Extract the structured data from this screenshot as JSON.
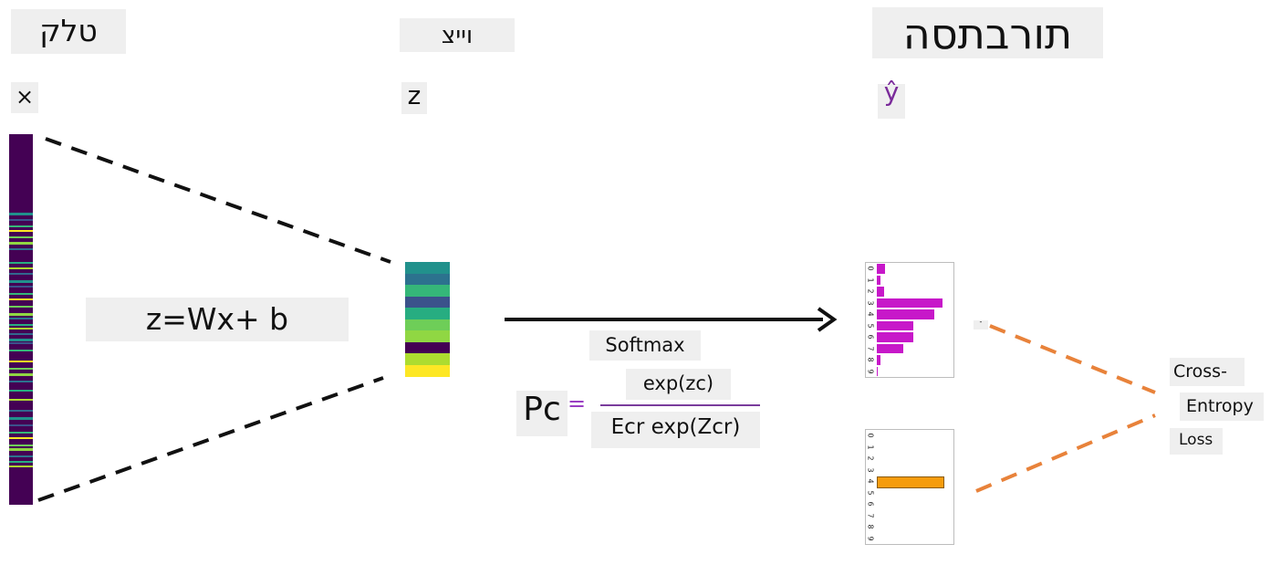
{
  "labels": {
    "input_title": "טלק",
    "logits_title": "וייצ",
    "output_title": "תורבתסה",
    "input_symbol": "×",
    "logits_symbol": "z",
    "output_symbol": "ŷ",
    "linear_eq": "z=Wx+ b",
    "softmax": "Softmax",
    "numerator": "exp(zc)",
    "denominator": "Ecr exp(Zcr)",
    "pc": "Pc",
    "equals": "=",
    "loss_line1": "Cross-",
    "loss_line2": "Entropy",
    "loss_line3": "Loss",
    "predicted_marker": "-"
  },
  "colors": {
    "input_background": "#440154",
    "predicted_bars": "#c718c9",
    "target_bar": "#f59c0c",
    "loss_lines": "#e8823a",
    "fraction_bar": "#7a3c9c",
    "equals_sign": "#9a3fc3"
  },
  "logits_colors": [
    "#21918c",
    "#2c728e",
    "#35b779",
    "#3b528b",
    "#27ad81",
    "#6ece58",
    "#90d743",
    "#440154",
    "#addc30",
    "#fde725"
  ],
  "input_stripe_colors": [
    "#21918c",
    "#3b528b",
    "#35b779",
    "#fde725",
    "#6ece58",
    "#90d743",
    "#2c728e",
    "#27ad81",
    "#addc30",
    "#31688e"
  ],
  "predicted_distribution": {
    "classes": [
      "0",
      "1",
      "2",
      "3",
      "4",
      "5",
      "6",
      "7",
      "8",
      "9"
    ],
    "values": [
      0.12,
      0.06,
      0.11,
      1.0,
      0.88,
      0.55,
      0.55,
      0.4,
      0.05,
      0.02
    ]
  },
  "target_distribution": {
    "classes": [
      "0",
      "1",
      "2",
      "3",
      "4",
      "5",
      "6",
      "7",
      "8",
      "9"
    ],
    "values": [
      0,
      0,
      0,
      0,
      1.0,
      0,
      0,
      0,
      0,
      0
    ]
  }
}
